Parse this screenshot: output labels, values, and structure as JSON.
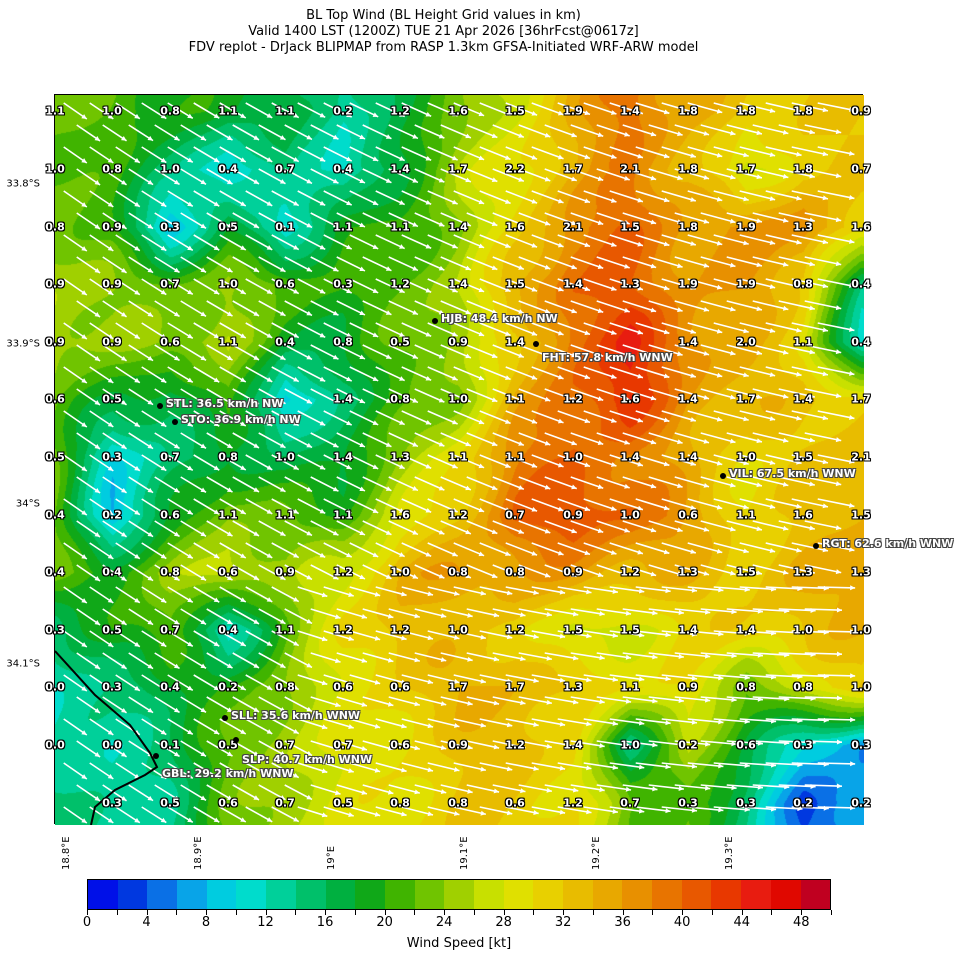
{
  "title": {
    "line1": "BL Top Wind (BL Height Grid values in km)",
    "line2": "Valid 1400 LST (1200Z) TUE 21 Apr 2026 [36hrFcst@0617z]",
    "line3": "FDV replot - DrJack BLIPMAP from RASP 1.3km GFSA-Initiated WRF-ARW model"
  },
  "chart_data": {
    "type": "heatmap",
    "overlay": "wind vectors, terrain contours, BL height grid values",
    "lat_ticks": [
      "33.8°S",
      "33.9°S",
      "34°S",
      "34.1°S"
    ],
    "lon_ticks": [
      "18.8°E",
      "18.9°E",
      "19°E",
      "19.1°E",
      "19.2°E",
      "19.3°E"
    ],
    "bl_height_grid_km": [
      [
        "1.1",
        "1.0",
        "0.8",
        "1.1",
        "1.1",
        "0.2",
        "1.2",
        "1.6",
        "1.5",
        "1.9",
        "1.4",
        "1.8",
        "1.8",
        "1.8",
        "0.9"
      ],
      [
        "1.0",
        "0.8",
        "1.0",
        "0.4",
        "0.7",
        "0.4",
        "1.4",
        "1.7",
        "2.2",
        "1.7",
        "2.1",
        "1.8",
        "1.7",
        "1.8",
        "0.7"
      ],
      [
        "0.8",
        "0.9",
        "0.3",
        "0.5",
        "0.1",
        "1.1",
        "1.1",
        "1.4",
        "1.6",
        "2.1",
        "1.5",
        "1.8",
        "1.9",
        "1.3",
        "1.6"
      ],
      [
        "0.9",
        "0.9",
        "0.7",
        "1.0",
        "0.6",
        "0.3",
        "1.2",
        "1.4",
        "1.5",
        "1.4",
        "1.3",
        "1.9",
        "1.9",
        "0.8",
        "0.4"
      ],
      [
        "0.9",
        "0.9",
        "0.6",
        "1.1",
        "0.4",
        "0.8",
        "0.5",
        "0.9",
        "1.4",
        "",
        "",
        "1.4",
        "2.0",
        "1.1",
        "0.4"
      ],
      [
        "0.6",
        "0.5",
        "",
        "",
        "",
        "1.4",
        "0.8",
        "1.0",
        "1.1",
        "1.2",
        "1.6",
        "1.4",
        "1.7",
        "1.4",
        "1.7"
      ],
      [
        "0.5",
        "0.3",
        "0.7",
        "0.8",
        "1.0",
        "1.4",
        "1.3",
        "1.1",
        "1.1",
        "1.0",
        "1.4",
        "1.4",
        "1.0",
        "1.5",
        "2.1"
      ],
      [
        "0.4",
        "0.2",
        "0.6",
        "1.1",
        "1.1",
        "1.1",
        "1.6",
        "1.2",
        "0.7",
        "0.9",
        "1.0",
        "0.6",
        "1.1",
        "1.6",
        "1.5"
      ],
      [
        "0.4",
        "0.4",
        "0.8",
        "0.6",
        "0.9",
        "1.2",
        "1.0",
        "0.8",
        "0.8",
        "0.9",
        "1.2",
        "1.3",
        "1.5",
        "1.3",
        "1.3"
      ],
      [
        "0.3",
        "0.5",
        "0.7",
        "0.4",
        "1.1",
        "1.2",
        "1.2",
        "1.0",
        "1.2",
        "1.5",
        "1.5",
        "1.4",
        "1.4",
        "1.0",
        "1.0"
      ],
      [
        "0.0",
        "0.3",
        "0.4",
        "0.2",
        "0.8",
        "0.6",
        "0.6",
        "1.7",
        "1.7",
        "1.3",
        "1.1",
        "0.9",
        "0.8",
        "0.8",
        "1.0"
      ],
      [
        "0.0",
        "0.0",
        "0.1",
        "0.5",
        "0.7",
        "0.7",
        "0.6",
        "0.9",
        "1.2",
        "1.4",
        "1.0",
        "0.2",
        "0.6",
        "0.3",
        "0.3"
      ],
      [
        "",
        "0.3",
        "0.5",
        "0.6",
        "0.7",
        "0.5",
        "0.8",
        "0.8",
        "0.6",
        "1.2",
        "0.7",
        "0.3",
        "0.3",
        "0.2",
        "0.2"
      ]
    ],
    "wind_speed_kt_approx": [
      [
        22,
        22,
        20,
        18,
        18,
        12,
        18,
        22,
        28,
        34,
        40,
        34,
        32,
        32,
        32
      ],
      [
        22,
        20,
        16,
        8,
        16,
        10,
        18,
        26,
        30,
        34,
        38,
        34,
        26,
        32,
        32
      ],
      [
        24,
        20,
        8,
        18,
        10,
        20,
        20,
        24,
        30,
        38,
        40,
        36,
        36,
        38,
        30
      ],
      [
        26,
        24,
        22,
        24,
        22,
        20,
        22,
        26,
        34,
        40,
        40,
        36,
        36,
        32,
        14
      ],
      [
        26,
        24,
        24,
        26,
        18,
        18,
        22,
        26,
        30,
        40,
        44,
        38,
        34,
        30,
        10
      ],
      [
        22,
        18,
        16,
        22,
        8,
        16,
        20,
        24,
        34,
        40,
        44,
        36,
        34,
        32,
        32
      ],
      [
        22,
        10,
        14,
        18,
        16,
        18,
        24,
        30,
        38,
        40,
        38,
        34,
        30,
        32,
        34
      ],
      [
        22,
        8,
        18,
        24,
        22,
        20,
        28,
        32,
        40,
        42,
        40,
        36,
        30,
        32,
        34
      ],
      [
        22,
        20,
        24,
        28,
        24,
        28,
        34,
        36,
        36,
        36,
        34,
        34,
        32,
        34,
        36
      ],
      [
        14,
        20,
        22,
        10,
        22,
        30,
        34,
        32,
        32,
        26,
        28,
        30,
        32,
        32,
        34
      ],
      [
        12,
        14,
        18,
        20,
        24,
        28,
        32,
        34,
        34,
        32,
        30,
        30,
        22,
        28,
        32
      ],
      [
        12,
        12,
        16,
        22,
        26,
        28,
        30,
        32,
        34,
        30,
        14,
        26,
        18,
        10,
        6
      ],
      [
        16,
        12,
        14,
        22,
        26,
        28,
        30,
        32,
        32,
        30,
        22,
        22,
        14,
        4,
        6
      ]
    ],
    "stations": [
      {
        "label": "HJB: 48.4 km/h NW"
      },
      {
        "label": "FHT: 57.8 km/h WNW"
      },
      {
        "label": "STL: 36.5 km/h NW"
      },
      {
        "label": "STO: 36.9 km/h NW"
      },
      {
        "label": "VIL: 67.5 km/h WNW"
      },
      {
        "label": "RGT: 62.6 km/h WNW"
      },
      {
        "label": "SLL: 35.6 km/h WNW"
      },
      {
        "label": "SLP: 40.7 km/h WNW"
      },
      {
        "label": "GBL: 29.2 km/h WNW"
      }
    ],
    "colorbar": {
      "label": "Wind Speed [kt]",
      "range": [
        0,
        50
      ],
      "step": 2,
      "ticks": [
        "0",
        "4",
        "8",
        "12",
        "16",
        "20",
        "24",
        "28",
        "32",
        "36",
        "40",
        "44",
        "48"
      ],
      "colors": [
        "#0010e8",
        "#0038e0",
        "#0a70e6",
        "#08a4e8",
        "#00cce0",
        "#00dccc",
        "#00d09a",
        "#00c06a",
        "#00b040",
        "#10a818",
        "#40b400",
        "#70c400",
        "#a0d000",
        "#c8e000",
        "#e0e000",
        "#e8d000",
        "#e8bc00",
        "#e8a800",
        "#e89000",
        "#e87400",
        "#e85800",
        "#e83800",
        "#e81c10",
        "#e00800",
        "#c00020"
      ]
    }
  }
}
